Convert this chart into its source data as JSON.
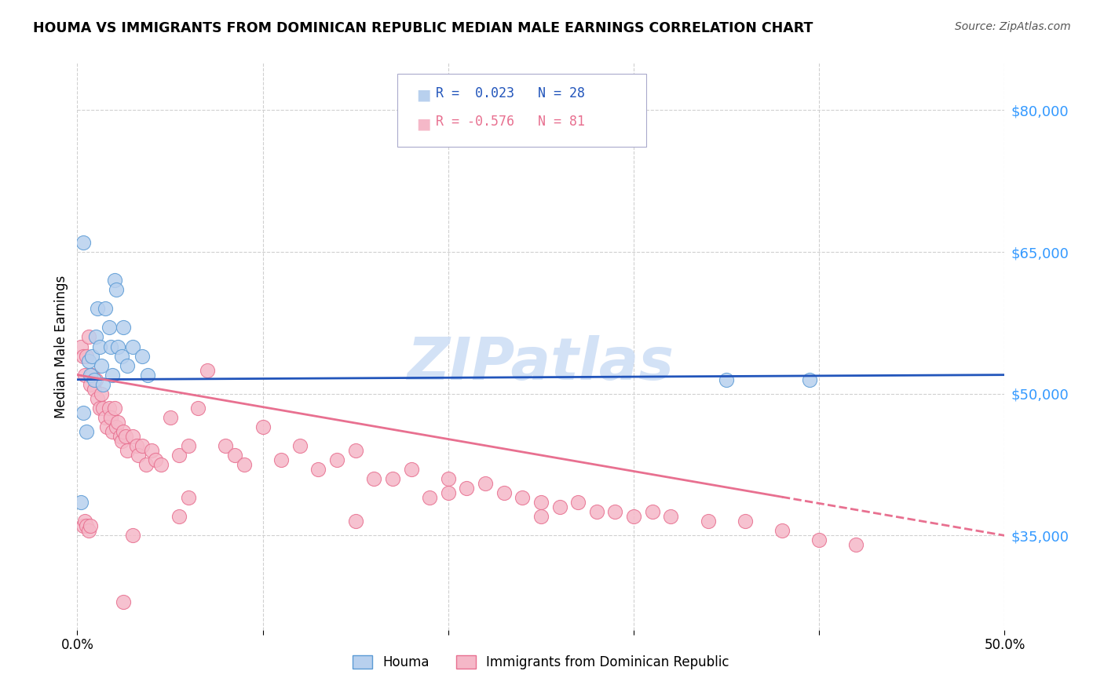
{
  "title": "HOUMA VS IMMIGRANTS FROM DOMINICAN REPUBLIC MEDIAN MALE EARNINGS CORRELATION CHART",
  "source": "Source: ZipAtlas.com",
  "ylabel": "Median Male Earnings",
  "xlim": [
    0.0,
    0.5
  ],
  "ylim": [
    25000,
    85000
  ],
  "yticks": [
    35000,
    50000,
    65000,
    80000
  ],
  "ytick_labels": [
    "$35,000",
    "$50,000",
    "$65,000",
    "$80,000"
  ],
  "xticks": [
    0.0,
    0.1,
    0.2,
    0.3,
    0.4,
    0.5
  ],
  "xtick_labels": [
    "0.0%",
    "",
    "",
    "",
    "",
    "50.0%"
  ],
  "background_color": "#ffffff",
  "grid_color": "#d0d0d0",
  "houma_color": "#b8d0ee",
  "houma_edge_color": "#5b9bd5",
  "dr_color": "#f5b8c8",
  "dr_edge_color": "#e87090",
  "houma_line_color": "#2255bb",
  "dr_line_color": "#e87090",
  "watermark_color": "#ccddf5",
  "houma_x": [
    0.003,
    0.006,
    0.007,
    0.008,
    0.009,
    0.01,
    0.011,
    0.012,
    0.013,
    0.014,
    0.015,
    0.017,
    0.018,
    0.019,
    0.02,
    0.021,
    0.022,
    0.024,
    0.025,
    0.027,
    0.03,
    0.035,
    0.038,
    0.003,
    0.005,
    0.35,
    0.395,
    0.002
  ],
  "houma_y": [
    66000,
    53500,
    52000,
    54000,
    51500,
    56000,
    59000,
    55000,
    53000,
    51000,
    59000,
    57000,
    55000,
    52000,
    62000,
    61000,
    55000,
    54000,
    57000,
    53000,
    55000,
    54000,
    52000,
    48000,
    46000,
    51500,
    51500,
    38500
  ],
  "dr_x": [
    0.002,
    0.003,
    0.004,
    0.005,
    0.006,
    0.007,
    0.008,
    0.009,
    0.01,
    0.011,
    0.012,
    0.013,
    0.014,
    0.015,
    0.016,
    0.017,
    0.018,
    0.019,
    0.02,
    0.021,
    0.022,
    0.023,
    0.024,
    0.025,
    0.026,
    0.027,
    0.03,
    0.032,
    0.033,
    0.035,
    0.037,
    0.04,
    0.042,
    0.045,
    0.05,
    0.055,
    0.06,
    0.065,
    0.07,
    0.08,
    0.085,
    0.09,
    0.1,
    0.11,
    0.12,
    0.13,
    0.14,
    0.15,
    0.16,
    0.17,
    0.18,
    0.19,
    0.2,
    0.21,
    0.22,
    0.23,
    0.24,
    0.25,
    0.26,
    0.27,
    0.28,
    0.29,
    0.3,
    0.31,
    0.32,
    0.34,
    0.36,
    0.38,
    0.4,
    0.42,
    0.055,
    0.06,
    0.15,
    0.2,
    0.25,
    0.003,
    0.004,
    0.005,
    0.006,
    0.007,
    0.025,
    0.03
  ],
  "dr_y": [
    55000,
    54000,
    52000,
    54000,
    56000,
    51000,
    52000,
    50500,
    51500,
    49500,
    48500,
    50000,
    48500,
    47500,
    46500,
    48500,
    47500,
    46000,
    48500,
    46500,
    47000,
    45500,
    45000,
    46000,
    45500,
    44000,
    45500,
    44500,
    43500,
    44500,
    42500,
    44000,
    43000,
    42500,
    47500,
    43500,
    44500,
    48500,
    52500,
    44500,
    43500,
    42500,
    46500,
    43000,
    44500,
    42000,
    43000,
    44000,
    41000,
    41000,
    42000,
    39000,
    41000,
    40000,
    40500,
    39500,
    39000,
    38500,
    38000,
    38500,
    37500,
    37500,
    37000,
    37500,
    37000,
    36500,
    36500,
    35500,
    34500,
    34000,
    37000,
    39000,
    36500,
    39500,
    37000,
    36000,
    36500,
    36000,
    35500,
    36000,
    28000,
    35000
  ]
}
